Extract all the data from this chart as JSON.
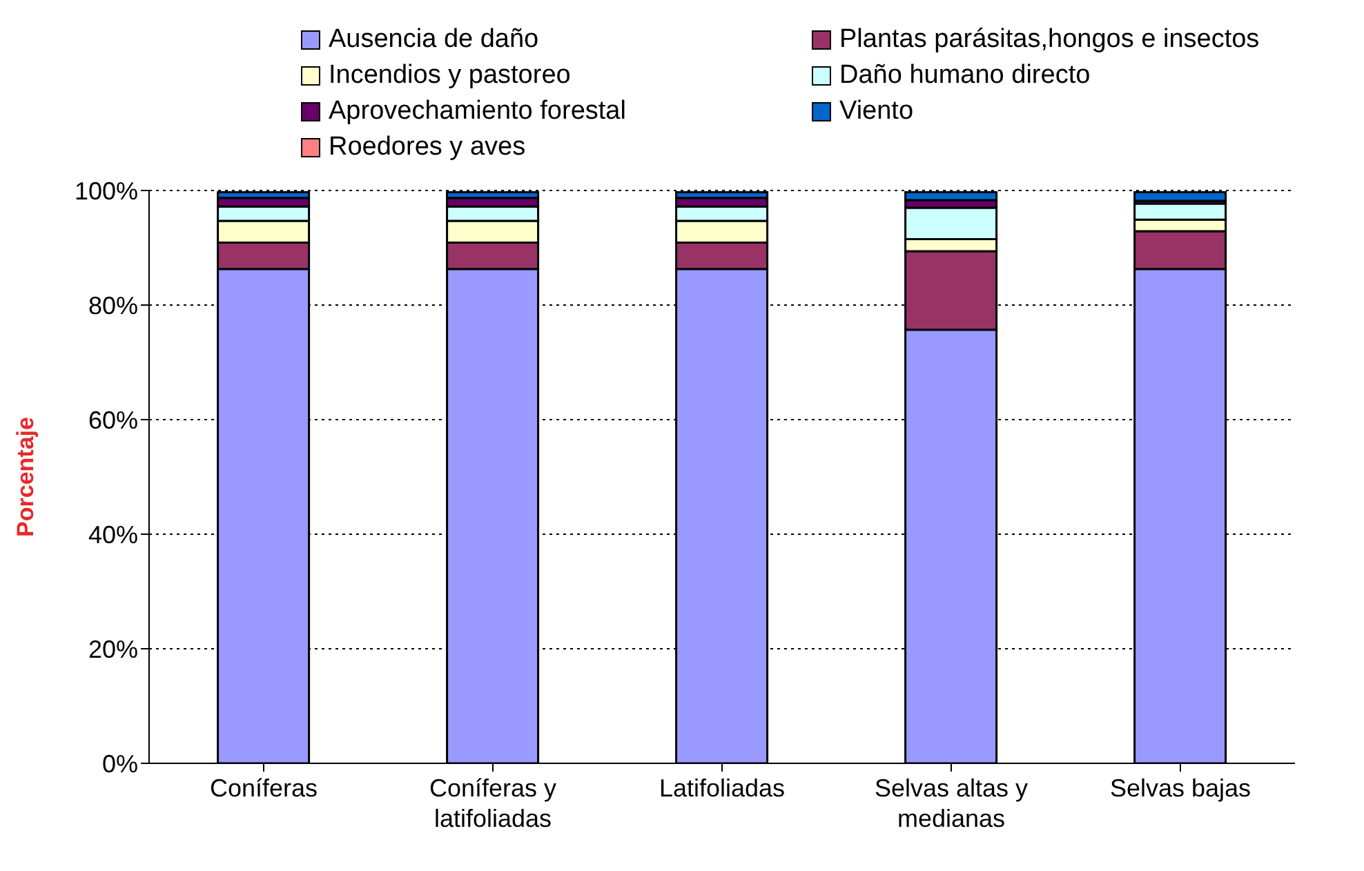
{
  "chart_data": {
    "type": "bar",
    "stacked": true,
    "ylabel": "Porcentaje",
    "categories": [
      "Coníferas",
      "Coníferas y latifoliadas",
      "Latifoliadas",
      "Selvas altas y medianas",
      "Selvas bajas"
    ],
    "series": [
      {
        "name": "Ausencia de daño",
        "color": "#9999ff",
        "values": [
          86.3,
          86.3,
          86.3,
          75.7,
          86.3
        ]
      },
      {
        "name": "Plantas parásitas,hongos e insectos",
        "color": "#993366",
        "values": [
          4.6,
          4.6,
          4.6,
          13.7,
          6.6
        ]
      },
      {
        "name": "Incendios y pastoreo",
        "color": "#ffffcc",
        "values": [
          3.8,
          3.8,
          3.8,
          2.1,
          2.0
        ]
      },
      {
        "name": "Daño humano directo",
        "color": "#ccffff",
        "values": [
          2.5,
          2.5,
          2.5,
          5.5,
          2.8
        ]
      },
      {
        "name": "Aprovechamiento forestal",
        "color": "#660066",
        "values": [
          1.5,
          1.5,
          1.5,
          1.3,
          0.5
        ]
      },
      {
        "name": "Viento",
        "color": "#0066cc",
        "values": [
          1.0,
          1.0,
          1.0,
          1.4,
          1.5
        ]
      },
      {
        "name": "Roedores y aves",
        "color": "#ff8080",
        "values": [
          null,
          null,
          null,
          null,
          null
        ]
      }
    ],
    "ylim": [
      0,
      100
    ],
    "yticks": [
      {
        "value": 0,
        "label": "0%"
      },
      {
        "value": 20,
        "label": "20%"
      },
      {
        "value": 40,
        "label": "40%"
      },
      {
        "value": 60,
        "label": "60%"
      },
      {
        "value": 80,
        "label": "80%"
      },
      {
        "value": 100,
        "label": "100%"
      }
    ],
    "grid": "y",
    "legend": "top"
  }
}
